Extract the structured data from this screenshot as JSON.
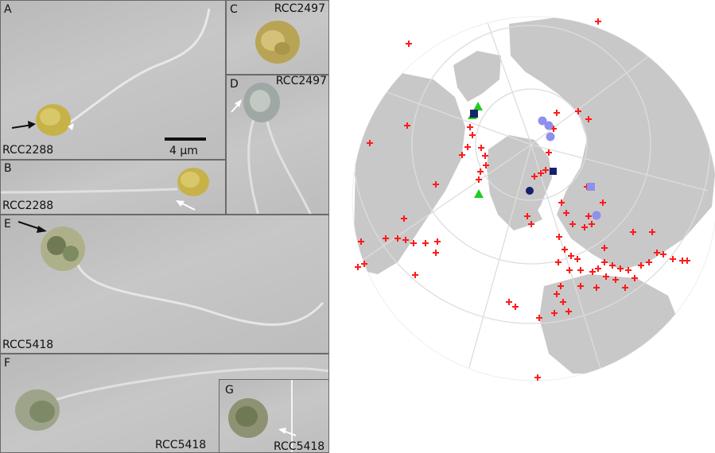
{
  "panels": {
    "A": {
      "letter": "A",
      "strain": "RCC2288",
      "scale_label": "4 µm"
    },
    "B": {
      "letter": "B",
      "strain": "RCC2288"
    },
    "C": {
      "letter": "C",
      "strain": "RCC2497"
    },
    "D": {
      "letter": "D",
      "strain": "RCC2497"
    },
    "E": {
      "letter": "E",
      "strain": "RCC5418"
    },
    "F": {
      "letter": "F",
      "strain": "RCC5418"
    },
    "G": {
      "letter": "G",
      "strain": "RCC5418"
    }
  },
  "map": {
    "projection": "polar orthographic, North Pole view",
    "colors": {
      "ocean": "#ffffff",
      "land": "#c8c8c8",
      "graticule": "#dddddd",
      "cross": "#ff1a1a",
      "green_triangle": "#22cc22",
      "navy": "#16216b",
      "lavender": "#8f8fee"
    }
  }
}
